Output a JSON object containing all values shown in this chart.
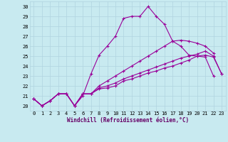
{
  "xlabel": "Windchill (Refroidissement éolien,°C)",
  "background_color": "#c8eaf0",
  "grid_color": "#b0d4e0",
  "line_color": "#990099",
  "xlim": [
    -0.5,
    23.5
  ],
  "ylim": [
    19.5,
    30.5
  ],
  "yticks": [
    20,
    21,
    22,
    23,
    24,
    25,
    26,
    27,
    28,
    29,
    30
  ],
  "xticks": [
    0,
    1,
    2,
    3,
    4,
    5,
    6,
    7,
    8,
    9,
    10,
    11,
    12,
    13,
    14,
    15,
    16,
    17,
    18,
    19,
    20,
    21,
    22,
    23
  ],
  "series": [
    [
      20.7,
      20.0,
      20.5,
      21.2,
      21.2,
      20.0,
      21.0,
      23.2,
      25.1,
      26.0,
      27.0,
      28.8,
      29.0,
      29.0,
      30.0,
      29.0,
      28.2,
      26.5,
      26.0,
      25.1,
      25.0,
      24.9,
      23.0,
      null
    ],
    [
      20.7,
      20.0,
      20.5,
      21.2,
      21.2,
      20.0,
      21.2,
      21.2,
      21.7,
      21.8,
      22.0,
      22.5,
      22.7,
      23.0,
      23.3,
      23.5,
      23.8,
      24.0,
      24.3,
      24.6,
      25.0,
      25.1,
      24.9,
      23.2
    ],
    [
      20.7,
      20.0,
      20.5,
      21.2,
      21.2,
      20.0,
      21.2,
      21.2,
      21.8,
      22.0,
      22.3,
      22.7,
      23.0,
      23.3,
      23.6,
      23.9,
      24.2,
      24.5,
      24.8,
      25.0,
      25.2,
      25.5,
      25.0,
      23.2
    ],
    [
      20.7,
      20.0,
      20.5,
      21.2,
      21.2,
      20.0,
      21.2,
      21.2,
      22.0,
      22.5,
      23.0,
      23.5,
      24.0,
      24.5,
      25.0,
      25.5,
      26.0,
      26.5,
      26.6,
      26.5,
      26.3,
      26.0,
      25.3,
      null
    ]
  ],
  "tick_fontsize": 5,
  "xlabel_fontsize": 5.5,
  "marker_size": 3,
  "linewidth": 0.8
}
